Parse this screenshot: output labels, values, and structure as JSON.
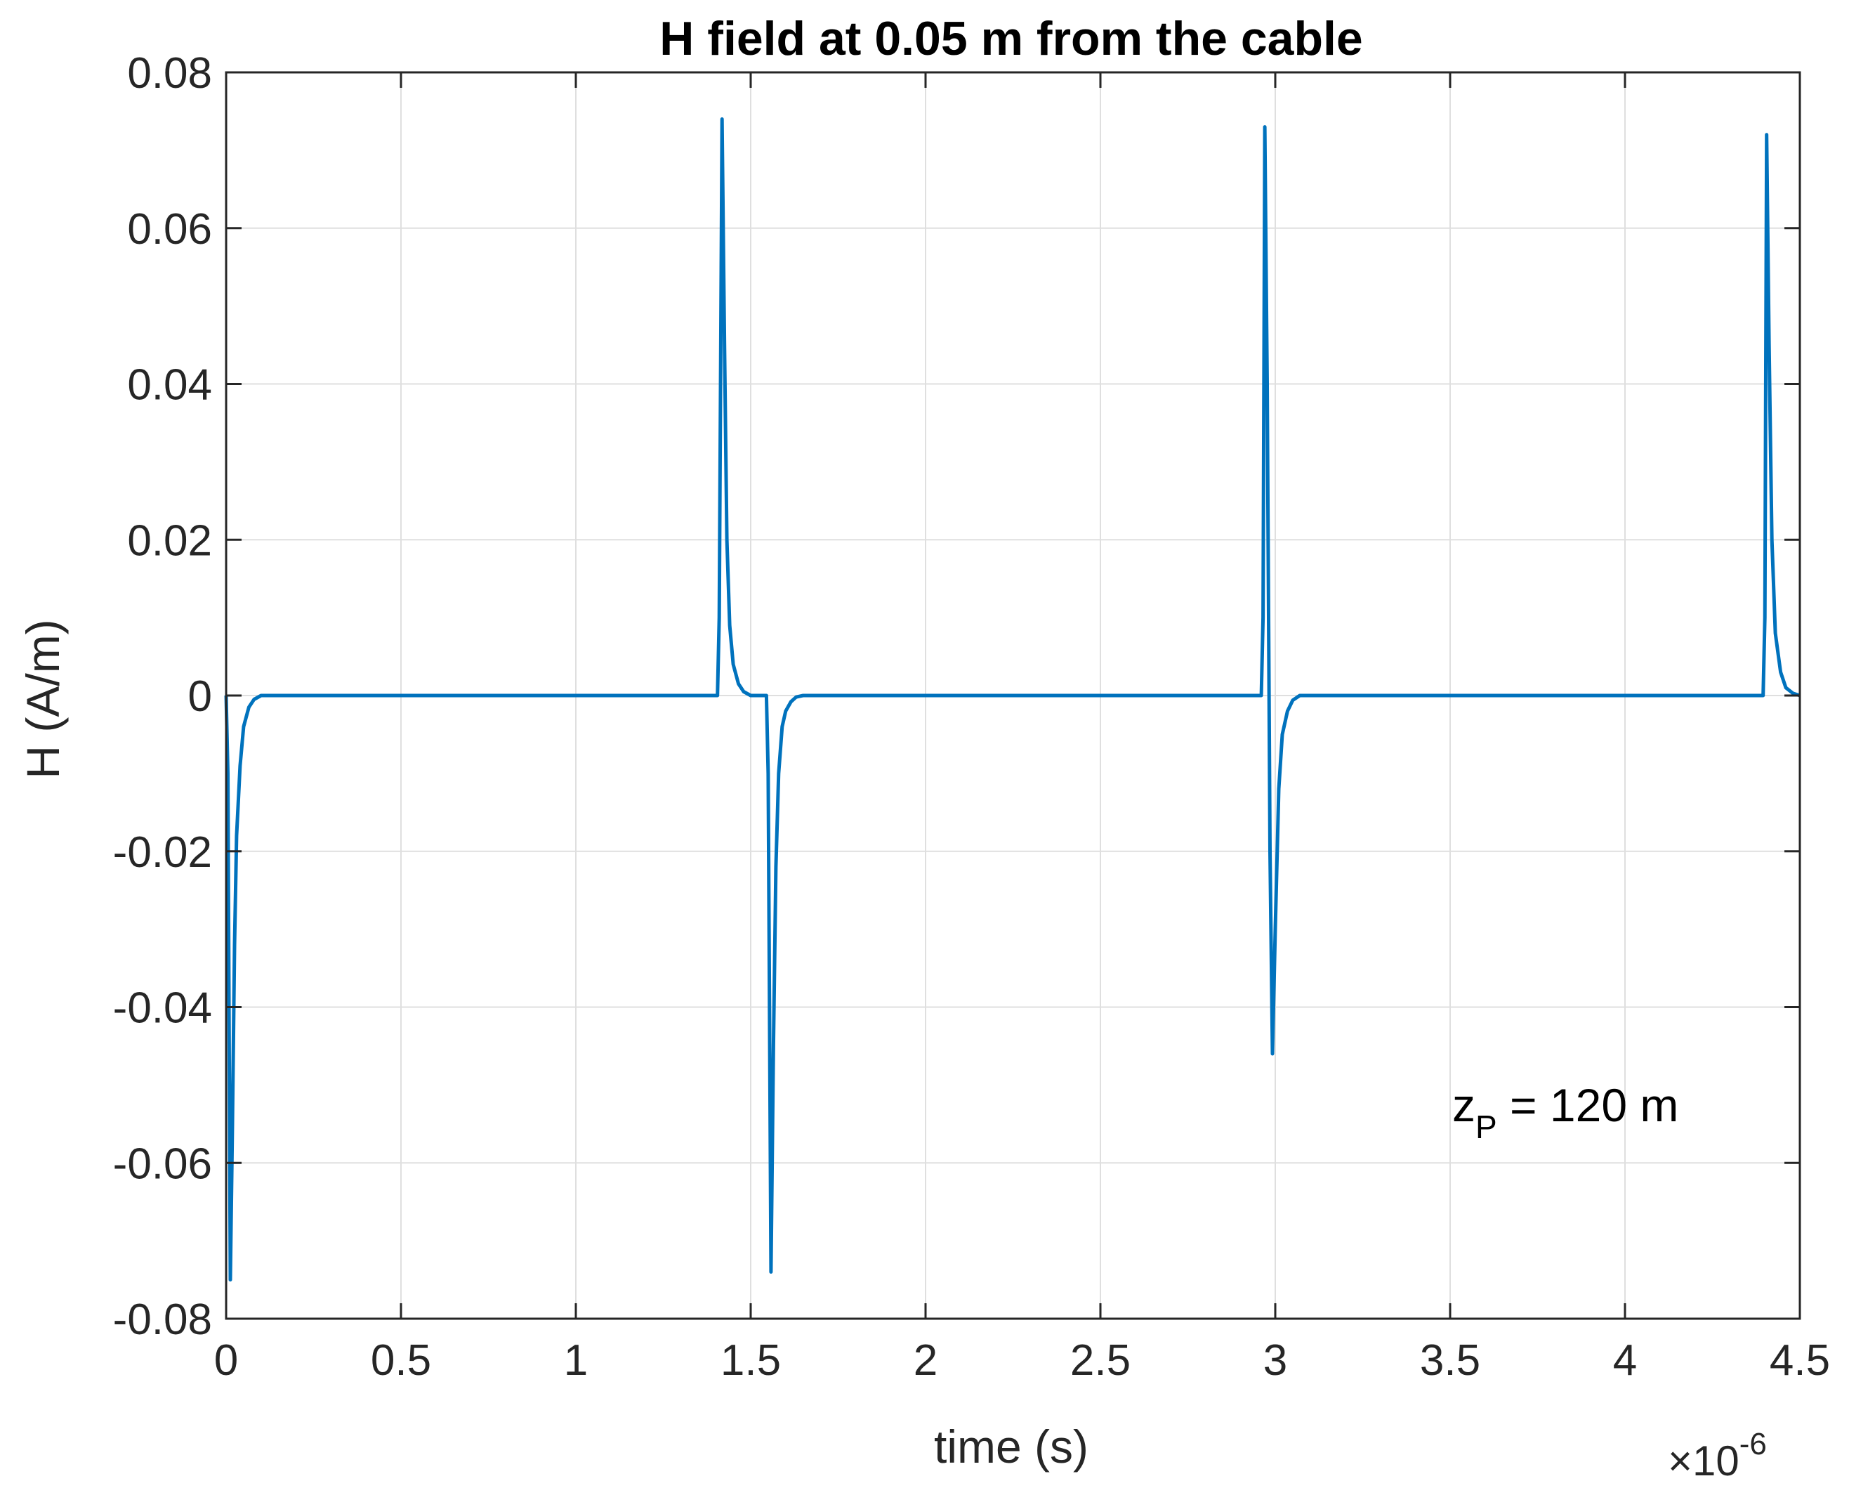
{
  "chart_data": {
    "type": "line",
    "title": "H field at 0.05 m from the cable",
    "xlabel": "time (s)",
    "ylabel": "H (A/m)",
    "x_multiplier": "×10",
    "x_multiplier_exp": "-6",
    "xlim": [
      0,
      4.5
    ],
    "ylim": [
      -0.08,
      0.08
    ],
    "xticks": [
      0,
      0.5,
      1,
      1.5,
      2,
      2.5,
      3,
      3.5,
      4,
      4.5
    ],
    "xtick_labels": [
      "0",
      "0.5",
      "1",
      "1.5",
      "2",
      "2.5",
      "3",
      "3.5",
      "4",
      "4.5"
    ],
    "yticks": [
      0.08,
      0.06,
      0.04,
      0.02,
      0,
      -0.02,
      -0.04,
      -0.06,
      -0.08
    ],
    "ytick_labels": [
      "0.08",
      "0.06",
      "0.04",
      "0.02",
      "0",
      "-0.02",
      "-0.04",
      "-0.06",
      "-0.08"
    ],
    "grid": true,
    "annotation": {
      "main": "z",
      "sub": "P",
      "rest": " = 120 m"
    },
    "series": [
      {
        "color": "#0072BD",
        "x": [
          0,
          0.005,
          0.012,
          0.018,
          0.024,
          0.03,
          0.04,
          0.05,
          0.065,
          0.08,
          0.1,
          1.0,
          1.405,
          1.41,
          1.418,
          1.425,
          1.432,
          1.44,
          1.45,
          1.465,
          1.48,
          1.5,
          1.545,
          1.55,
          1.558,
          1.565,
          1.572,
          1.58,
          1.59,
          1.6,
          1.615,
          1.63,
          1.65,
          2.5,
          2.96,
          2.965,
          2.97,
          2.977,
          2.985,
          2.992,
          3.0,
          3.01,
          3.02,
          3.035,
          3.05,
          3.07,
          4.0,
          4.395,
          4.4,
          4.405,
          4.412,
          4.42,
          4.43,
          4.445,
          4.46,
          4.48,
          4.5
        ],
        "y": [
          0,
          -0.01,
          -0.075,
          -0.055,
          -0.032,
          -0.018,
          -0.009,
          -0.004,
          -0.0015,
          -0.0005,
          0,
          0,
          0,
          0.01,
          0.074,
          0.045,
          0.02,
          0.009,
          0.004,
          0.0015,
          0.0005,
          0,
          0,
          -0.01,
          -0.074,
          -0.045,
          -0.022,
          -0.01,
          -0.004,
          -0.002,
          -0.0008,
          -0.0002,
          0,
          0,
          0,
          0.01,
          0.073,
          0.04,
          -0.02,
          -0.046,
          -0.03,
          -0.012,
          -0.005,
          -0.002,
          -0.0006,
          0,
          0,
          0,
          0.01,
          0.072,
          0.045,
          0.02,
          0.008,
          0.003,
          0.001,
          0.0003,
          0
        ]
      }
    ]
  }
}
